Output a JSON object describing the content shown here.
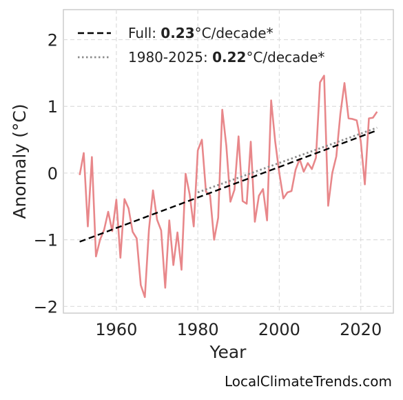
{
  "chart_data": {
    "type": "line",
    "xlabel": "Year",
    "ylabel": "Anomaly (°C)",
    "xlim": [
      1947,
      2028
    ],
    "ylim": [
      -2.1,
      2.45
    ],
    "x_ticks": [
      1960,
      1980,
      2000,
      2020
    ],
    "y_ticks": [
      -2,
      -1,
      0,
      1,
      2
    ],
    "y_tick_labels": [
      "−2",
      "−1",
      "0",
      "1",
      "2"
    ],
    "grid": true,
    "legend_position": "top-left",
    "legend": [
      {
        "prefix": "Full: ",
        "value": "0.23",
        "suffix": "°C/decade*"
      },
      {
        "prefix": "1980-2025: ",
        "value": "0.22",
        "suffix": "°C/decade*"
      }
    ],
    "series": [
      {
        "style": "solid",
        "color": "#e8878a",
        "x": [
          1951,
          1952,
          1953,
          1954,
          1955,
          1956,
          1957,
          1958,
          1959,
          1960,
          1961,
          1962,
          1963,
          1964,
          1965,
          1966,
          1967,
          1968,
          1969,
          1970,
          1971,
          1972,
          1973,
          1974,
          1975,
          1976,
          1977,
          1978,
          1979,
          1980,
          1981,
          1982,
          1983,
          1984,
          1985,
          1986,
          1987,
          1988,
          1989,
          1990,
          1991,
          1992,
          1993,
          1994,
          1995,
          1996,
          1997,
          1998,
          1999,
          2000,
          2001,
          2002,
          2003,
          2004,
          2005,
          2006,
          2007,
          2008,
          2009,
          2010,
          2011,
          2012,
          2013,
          2014,
          2015,
          2016,
          2017,
          2018,
          2019,
          2020,
          2021,
          2022,
          2023,
          2024
        ],
        "y": [
          -0.03,
          0.3,
          -0.8,
          0.24,
          -1.25,
          -1.0,
          -0.85,
          -0.58,
          -0.87,
          -0.4,
          -1.27,
          -0.39,
          -0.53,
          -0.88,
          -0.98,
          -1.68,
          -1.86,
          -0.85,
          -0.26,
          -0.7,
          -0.86,
          -1.72,
          -0.71,
          -1.38,
          -0.89,
          -1.45,
          -0.01,
          -0.32,
          -0.8,
          0.34,
          0.5,
          -0.28,
          -0.33,
          -1.0,
          -0.67,
          0.95,
          0.41,
          -0.43,
          -0.25,
          0.55,
          -0.42,
          -0.46,
          0.47,
          -0.73,
          -0.34,
          -0.24,
          -0.71,
          1.09,
          0.47,
          0.0,
          -0.38,
          -0.29,
          -0.27,
          0.05,
          0.21,
          0.02,
          0.15,
          0.06,
          0.23,
          1.36,
          1.46,
          -0.49,
          0.0,
          0.25,
          0.89,
          1.35,
          0.82,
          0.81,
          0.79,
          0.48,
          -0.17,
          0.82,
          0.83,
          0.92
        ]
      },
      {
        "style": "dashed",
        "color": "#000000",
        "x": [
          1951,
          2024
        ],
        "y": [
          -1.03,
          0.64
        ]
      },
      {
        "style": "dotted",
        "color": "#8c8c8c",
        "x": [
          1980,
          2024
        ],
        "y": [
          -0.29,
          0.68
        ]
      }
    ]
  },
  "watermark": "LocalClimateTrends.com"
}
